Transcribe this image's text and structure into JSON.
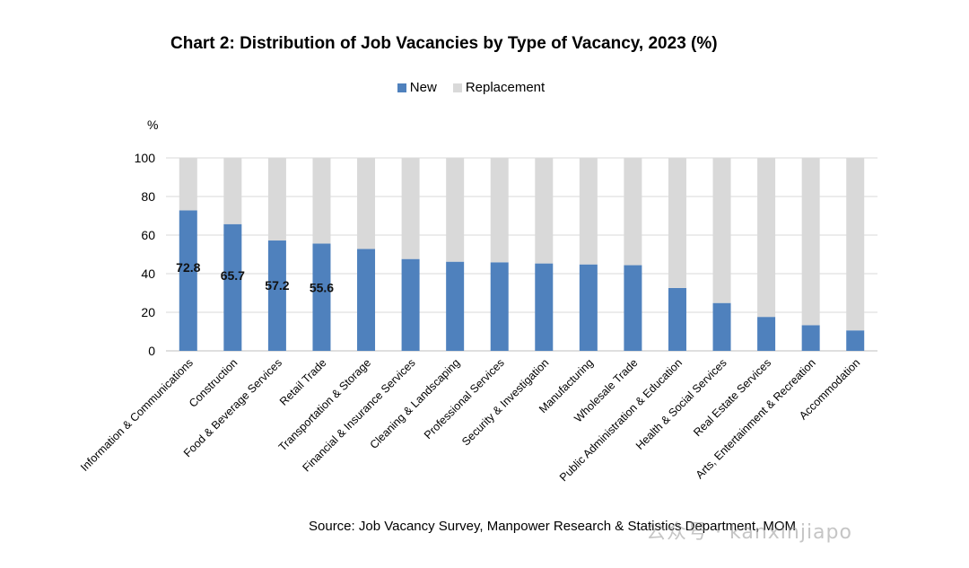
{
  "chart_data": {
    "type": "bar",
    "stacked": true,
    "title": "Chart 2: Distribution of Job Vacancies by Type of Vacancy, 2023 (%)",
    "ylabel": "%",
    "ylim": [
      0,
      100
    ],
    "yticks": [
      0,
      20,
      40,
      60,
      80,
      100
    ],
    "grid": true,
    "legend_position": "top-center",
    "categories": [
      "Information & Communications",
      "Construction",
      "Food & Beverage Services",
      "Retail Trade",
      "Transportation & Storage",
      "Financial & Insurance Services",
      "Cleaning & Landscaping",
      "Professional Services",
      "Security & Investigation",
      "Manufacturing",
      "Wholesale Trade",
      "Public Administration & Education",
      "Health & Social Services",
      "Real Estate Services",
      "Arts, Entertainment & Recreation",
      "Accommodation"
    ],
    "series": [
      {
        "name": "New",
        "color": "#4f81bd",
        "values": [
          72.8,
          65.7,
          57.2,
          55.6,
          52.8,
          47.6,
          46.2,
          45.9,
          45.3,
          44.8,
          44.4,
          32.6,
          24.8,
          17.6,
          13.3,
          10.6
        ]
      },
      {
        "name": "Replacement",
        "color": "#d9d9d9",
        "values": [
          27.2,
          34.3,
          42.8,
          44.4,
          47.2,
          52.4,
          53.8,
          54.1,
          54.7,
          55.2,
          55.6,
          67.4,
          75.2,
          82.4,
          86.7,
          89.4
        ]
      }
    ],
    "data_labels": [
      {
        "category_index": 0,
        "text": "72.8"
      },
      {
        "category_index": 1,
        "text": "65.7"
      },
      {
        "category_index": 2,
        "text": "57.2"
      },
      {
        "category_index": 3,
        "text": "55.6"
      }
    ],
    "source": "Source: Job Vacancy Survey, Manpower Research & Statistics Department, MOM"
  },
  "watermark": "公众号 · kanxinjiapo"
}
